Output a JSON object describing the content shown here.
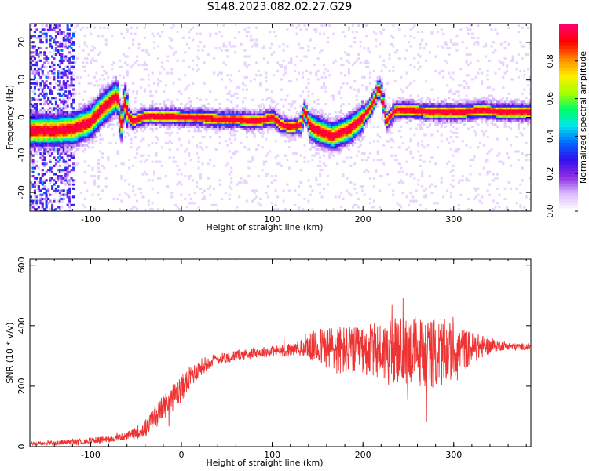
{
  "title": "S148.2023.082.02.27.G29",
  "colors": {
    "series_line": "#ee3333",
    "axis": "#000000",
    "background": "#ffffff",
    "colorbar": [
      "#ffffff",
      "#d8b8ff",
      "#8a2be2",
      "#3311ee",
      "#0066ff",
      "#00e5ee",
      "#00ff66",
      "#aaff00",
      "#ffee00",
      "#ff8800",
      "#ff0000",
      "#ff0066"
    ]
  },
  "chart_data": [
    {
      "type": "heatmap",
      "title": "S148.2023.082.02.27.G29",
      "xlabel": "Height of straight line (km)",
      "ylabel": "Frequency (Hz)",
      "xlim": [
        -167,
        385
      ],
      "ylim": [
        -25,
        25
      ],
      "x_ticks": [
        "-100",
        "0",
        "100",
        "200",
        "300"
      ],
      "y_ticks": [
        "20",
        "10",
        "0",
        "-10",
        "-20"
      ],
      "colorbar": {
        "label": "Normalized spectral amplitude",
        "range": [
          0,
          1
        ],
        "ticks": [
          "0.0",
          "0.2",
          "0.4",
          "0.6",
          "0.8"
        ]
      },
      "ridge_center_hz": {
        "x": [
          -140,
          -120,
          -100,
          -90,
          -80,
          -72,
          -68,
          -64,
          -60,
          -55,
          -45,
          -35,
          -25,
          -10,
          0,
          20,
          40,
          60,
          80,
          100,
          110,
          120,
          130,
          135,
          140,
          145,
          155,
          165,
          175,
          185,
          195,
          205,
          212,
          216,
          220,
          225,
          235,
          250,
          270,
          290,
          310,
          330,
          350,
          385
        ],
        "y": [
          -3.5,
          -3,
          -1,
          2,
          4,
          6,
          -3,
          5,
          1,
          -1,
          0,
          0.5,
          0.2,
          0.3,
          0,
          0,
          -0.5,
          -0.5,
          -1,
          0,
          -2,
          -2.5,
          -2,
          2,
          -2,
          -3,
          -4,
          -5,
          -4,
          -3,
          -1,
          2,
          5,
          8,
          6,
          -1,
          2,
          2,
          1.5,
          1.5,
          1.5,
          2,
          1.5,
          1.5
        ]
      }
    },
    {
      "type": "line",
      "title": "",
      "xlabel": "Height of straight line (km)",
      "ylabel": "SNR (10 * v/v)",
      "xlim": [
        -167,
        385
      ],
      "ylim": [
        0,
        620
      ],
      "x_ticks": [
        "-100",
        "0",
        "100",
        "200",
        "300"
      ],
      "y_ticks": [
        "0",
        "200",
        "400",
        "600"
      ],
      "series": [
        {
          "mean": {
            "x": [
              -167,
              -140,
              -120,
              -100,
              -80,
              -60,
              -50,
              -40,
              -30,
              -20,
              -10,
              0,
              10,
              20,
              30,
              40,
              60,
              80,
              100,
              120,
              140,
              155,
              170,
              190,
              210,
              230,
              250,
              270,
              290,
              310,
              330,
              350,
              370,
              385
            ],
            "y": [
              10,
              12,
              15,
              20,
              25,
              35,
              45,
              60,
              100,
              130,
              160,
              190,
              230,
              260,
              280,
              290,
              300,
              310,
              315,
              320,
              330,
              330,
              320,
              315,
              320,
              310,
              320,
              310,
              310,
              320,
              330,
              335,
              330,
              330
            ]
          },
          "spread": {
            "x": [
              -167,
              -60,
              -40,
              -20,
              0,
              20,
              40,
              100,
              130,
              150,
              170,
              200,
              230,
              260,
              290,
              320,
              340,
              360,
              385
            ],
            "y": [
              6,
              12,
              30,
              40,
              45,
              30,
              18,
              18,
              25,
              60,
              85,
              80,
              110,
              120,
              110,
              55,
              25,
              12,
              10
            ]
          }
        }
      ]
    }
  ]
}
